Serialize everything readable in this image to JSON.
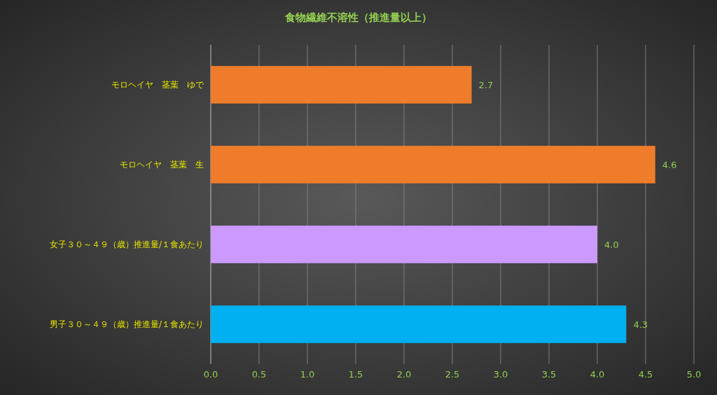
{
  "chart_data": {
    "type": "bar",
    "orientation": "horizontal",
    "title": "食物繊維不溶性（推進量以上）",
    "categories": [
      "モロヘイヤ　茎葉　ゆで",
      "モロヘイヤ　茎葉　生",
      "女子３０～４９（歳）推進量/１食あたり",
      "男子３０～４９（歳）推進量/１食あたり"
    ],
    "values": [
      2.7,
      4.6,
      4.0,
      4.3
    ],
    "colors": [
      "#ef7c2a",
      "#ef7c2a",
      "#cc99ff",
      "#00b0f0"
    ],
    "value_labels": [
      "2.7",
      "4.6",
      "4.0",
      "4.3"
    ],
    "xlim": [
      0,
      5
    ],
    "xticks": [
      {
        "value": 0,
        "label": "0.0"
      },
      0.5,
      {
        "value": 1,
        "label": "1.0"
      },
      1.5,
      {
        "value": 2,
        "label": "2.0"
      },
      2.5,
      {
        "value": 3,
        "label": "3.0"
      },
      3.5,
      {
        "value": 4,
        "label": "4.0"
      },
      4.5,
      {
        "value": 5,
        "label": "5.0"
      }
    ],
    "grid": "x"
  }
}
